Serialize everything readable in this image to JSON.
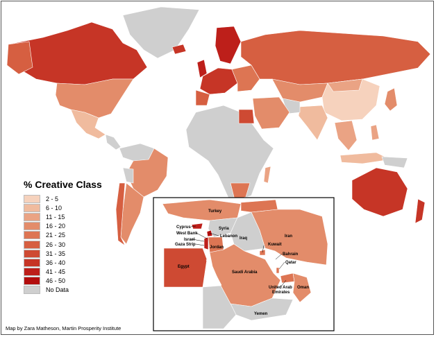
{
  "legend": {
    "title": "% Creative Class",
    "items": [
      {
        "label": "2 - 5",
        "color": "#f6d2bd"
      },
      {
        "label": "6 - 10",
        "color": "#f0bb9e"
      },
      {
        "label": "11 - 15",
        "color": "#eaa384"
      },
      {
        "label": "16 - 20",
        "color": "#e38c6a"
      },
      {
        "label": "21 - 25",
        "color": "#dd7553"
      },
      {
        "label": "26 - 30",
        "color": "#d65f41"
      },
      {
        "label": "31 - 35",
        "color": "#ce4a33"
      },
      {
        "label": "36 - 40",
        "color": "#c63526"
      },
      {
        "label": "41 - 45",
        "color": "#bd1f1a"
      },
      {
        "label": "46 - 50",
        "color": "#b30d0d"
      },
      {
        "label": "No Data",
        "color": "#cfcfcf"
      }
    ]
  },
  "inset_labels": {
    "turkey": "Turkey",
    "cyprus": "Cyprus",
    "syria": "Syria",
    "west_bank": "West Bank",
    "lebanon": "Lebanon",
    "israel": "Israel",
    "iraq": "Iraq",
    "iran": "Iran",
    "gaza_strip": "Gaza Strip",
    "jordan": "Jordan",
    "kuwait": "Kuwait",
    "bahrain": "Bahrain",
    "egypt": "Egypt",
    "qatar": "Qatar",
    "saudi_arabia": "Saudi Arabia",
    "uae_line1": "United Arab",
    "uae_line2": "Emirates",
    "oman": "Oman",
    "yemen": "Yemen"
  },
  "credit": "Map by Zara Matheson, Martin Prosperity Institute"
}
